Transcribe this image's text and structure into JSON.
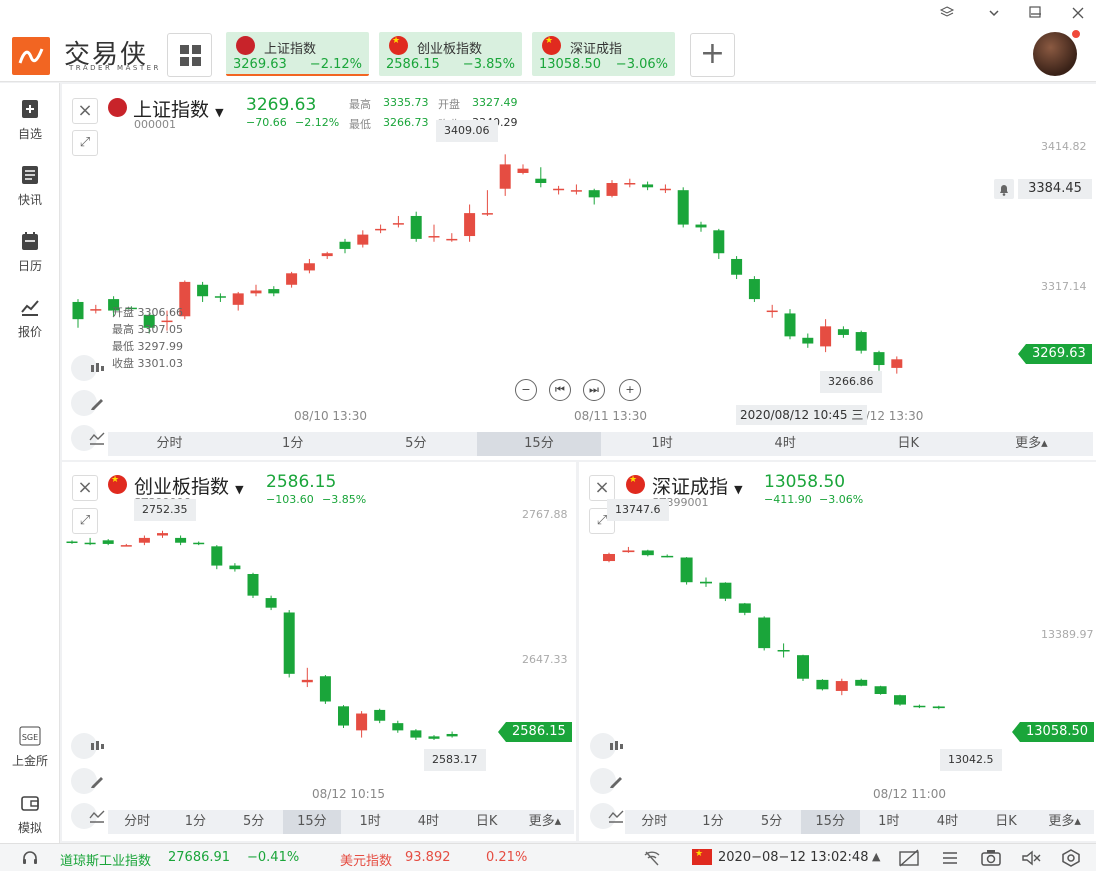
{
  "app": {
    "name": "交易侠",
    "subtitle": "TRADER MASTER"
  },
  "tabs": [
    {
      "name": "上证指数",
      "price": "3269.63",
      "change": "−2.12%",
      "flag": "sh"
    },
    {
      "name": "创业板指数",
      "price": "2586.15",
      "change": "−3.85%",
      "flag": "cn"
    },
    {
      "name": "深证成指",
      "price": "13058.50",
      "change": "−3.06%",
      "flag": "cn"
    }
  ],
  "add_label": "+",
  "sidebar": [
    {
      "label": "自选",
      "icon": "bookmark-icon"
    },
    {
      "label": "快讯",
      "icon": "news-icon"
    },
    {
      "label": "日历",
      "icon": "calendar-icon"
    },
    {
      "label": "报价",
      "icon": "quote-icon"
    },
    {
      "label": "上金所",
      "icon": "sge-icon",
      "glyph": "SGE"
    },
    {
      "label": "模拟",
      "icon": "wallet-icon"
    }
  ],
  "main": {
    "title": "上证指数",
    "code": "000001",
    "price": "3269.63",
    "change": "−70.66",
    "pct": "−2.12%",
    "high_label": "最高",
    "high": "3335.73",
    "open_label": "开盘",
    "open": "3327.49",
    "low_label": "最低",
    "low": "3266.73",
    "prev_label": "昨收",
    "prev": "3340.29",
    "ohlc": {
      "open": "开盘 3306.66",
      "high": "最高 3307.05",
      "low": "最低 3297.99",
      "close": "收盘 3301.03"
    },
    "axis": [
      "3414.82",
      "3317.14"
    ],
    "alert_price": "3384.45",
    "last_tag": "3269.63",
    "peak_tip": "3409.06",
    "low_tip": "3266.86",
    "times": [
      "08/10 13:30",
      "08/11 13:30",
      "8/12 13:30"
    ],
    "cursor_time": "2020/08/12 10:45 三",
    "periods": [
      "分时",
      "1分",
      "5分",
      "15分",
      "1时",
      "4时",
      "日K",
      "更多▴"
    ],
    "active_period": 3,
    "candles": [
      [
        3306,
        3294,
        3308,
        3288
      ],
      [
        3300,
        3301,
        3304,
        3298
      ],
      [
        3308,
        3300,
        3310,
        3296
      ],
      [
        3302,
        3301,
        3303,
        3300
      ],
      [
        3297,
        3288,
        3298,
        3284
      ],
      [
        3292,
        3293,
        3300,
        3286
      ],
      [
        3296,
        3320,
        3321,
        3294
      ],
      [
        3318,
        3310,
        3320,
        3306
      ],
      [
        3310,
        3309,
        3312,
        3306
      ],
      [
        3304,
        3312,
        3313,
        3300
      ],
      [
        3312,
        3314,
        3318,
        3310
      ],
      [
        3315,
        3312,
        3317,
        3310
      ],
      [
        3318,
        3326,
        3327,
        3316
      ],
      [
        3328,
        3333,
        3336,
        3326
      ],
      [
        3338,
        3340,
        3341,
        3336
      ],
      [
        3348,
        3343,
        3350,
        3340
      ],
      [
        3346,
        3353,
        3356,
        3344
      ],
      [
        3356,
        3357,
        3360,
        3354
      ],
      [
        3360,
        3361,
        3366,
        3358
      ],
      [
        3366,
        3350,
        3369,
        3348
      ],
      [
        3352,
        3352,
        3360,
        3348
      ],
      [
        3350,
        3350,
        3354,
        3348
      ],
      [
        3352,
        3368,
        3374,
        3348
      ],
      [
        3368,
        3368,
        3384,
        3366
      ],
      [
        3385,
        3402,
        3409,
        3380
      ],
      [
        3396,
        3399,
        3402,
        3395
      ],
      [
        3392,
        3389,
        3400,
        3386
      ],
      [
        3384,
        3385,
        3387,
        3381
      ],
      [
        3384,
        3384,
        3388,
        3381
      ],
      [
        3384,
        3379,
        3385,
        3374
      ],
      [
        3380,
        3389,
        3391,
        3379
      ],
      [
        3389,
        3389,
        3392,
        3386
      ],
      [
        3388,
        3386,
        3390,
        3384
      ],
      [
        3384,
        3385,
        3388,
        3382
      ],
      [
        3384,
        3360,
        3386,
        3358
      ],
      [
        3360,
        3358,
        3362,
        3355
      ],
      [
        3356,
        3340,
        3357,
        3336
      ],
      [
        3336,
        3325,
        3338,
        3322
      ],
      [
        3322,
        3308,
        3324,
        3306
      ],
      [
        3300,
        3300,
        3304,
        3295
      ],
      [
        3298,
        3282,
        3301,
        3280
      ],
      [
        3281,
        3277,
        3284,
        3274
      ],
      [
        3275,
        3289,
        3294,
        3271
      ],
      [
        3287,
        3283,
        3289,
        3281
      ],
      [
        3285,
        3272,
        3286,
        3270
      ],
      [
        3271,
        3262,
        3272,
        3258
      ],
      [
        3260,
        3266,
        3268,
        3256
      ]
    ]
  },
  "cyb": {
    "title": "创业板指数",
    "code": "SZ399006",
    "price": "2586.15",
    "change": "−103.60",
    "pct": "−3.85%",
    "axis": [
      "2767.88",
      "2647.33"
    ],
    "last_tag": "2586.15",
    "peak_tip": "2752.35",
    "low_tip": "2583.17",
    "time": "08/12 10:15",
    "periods": [
      "分时",
      "1分",
      "5分",
      "15分",
      "1时",
      "4时",
      "日K",
      "更多▴"
    ],
    "active_period": 3,
    "candles": [
      [
        2745,
        2744,
        2746,
        2743
      ],
      [
        2744,
        2743,
        2748,
        2742
      ],
      [
        2746,
        2743,
        2747,
        2742
      ],
      [
        2742,
        2742,
        2743,
        2741
      ],
      [
        2744,
        2748,
        2750,
        2742
      ],
      [
        2750,
        2752,
        2754,
        2748
      ],
      [
        2748,
        2744,
        2750,
        2742
      ],
      [
        2744,
        2743,
        2745,
        2742
      ],
      [
        2741,
        2725,
        2742,
        2722
      ],
      [
        2725,
        2722,
        2727,
        2720
      ],
      [
        2718,
        2700,
        2719,
        2698
      ],
      [
        2698,
        2690,
        2700,
        2688
      ],
      [
        2686,
        2635,
        2688,
        2632
      ],
      [
        2628,
        2630,
        2640,
        2624
      ],
      [
        2633,
        2612,
        2634,
        2610
      ],
      [
        2608,
        2592,
        2609,
        2590
      ],
      [
        2588,
        2602,
        2604,
        2582
      ],
      [
        2605,
        2596,
        2606,
        2594
      ],
      [
        2594,
        2588,
        2596,
        2586
      ],
      [
        2588,
        2582,
        2589,
        2580
      ],
      [
        2583,
        2581,
        2584,
        2580
      ],
      [
        2585,
        2583,
        2587,
        2582
      ]
    ]
  },
  "szcz": {
    "title": "深证成指",
    "code": "SZ399001",
    "price": "13058.50",
    "change": "−411.90",
    "pct": "−3.06%",
    "axis": [
      "13389.97"
    ],
    "last_tag": "13058.50",
    "peak_tip": "13747.6",
    "low_tip": "13042.5",
    "time": "08/12 11:00",
    "periods": [
      "分时",
      "1分",
      "5分",
      "15分",
      "1时",
      "4时",
      "日K",
      "更多▴"
    ],
    "active_period": 3,
    "candles": [
      [
        13700,
        13730,
        13735,
        13695
      ],
      [
        13738,
        13745,
        13760,
        13735
      ],
      [
        13745,
        13725,
        13748,
        13720
      ],
      [
        13722,
        13718,
        13728,
        13715
      ],
      [
        13715,
        13610,
        13717,
        13600
      ],
      [
        13612,
        13605,
        13630,
        13590
      ],
      [
        13608,
        13540,
        13610,
        13530
      ],
      [
        13520,
        13480,
        13522,
        13470
      ],
      [
        13460,
        13330,
        13465,
        13320
      ],
      [
        13322,
        13318,
        13350,
        13290
      ],
      [
        13300,
        13200,
        13302,
        13190
      ],
      [
        13195,
        13155,
        13198,
        13150
      ],
      [
        13148,
        13190,
        13200,
        13130
      ],
      [
        13195,
        13170,
        13200,
        13168
      ],
      [
        13168,
        13135,
        13170,
        13132
      ],
      [
        13130,
        13090,
        13132,
        13085
      ],
      [
        13085,
        13080,
        13090,
        13075
      ],
      [
        13082,
        13075,
        13085,
        13070
      ]
    ]
  },
  "statusbar": {
    "dji_name": "道琼斯工业指数",
    "dji": "27686.91",
    "dji_pct": "−0.41%",
    "usd_name": "美元指数",
    "usd": "93.892",
    "usd_pct": "0.21%",
    "datetime": "2020−08−12 13:02:48"
  },
  "colors": {
    "up": "#e54d42",
    "down": "#1aa53a",
    "accent": "#f26522"
  }
}
